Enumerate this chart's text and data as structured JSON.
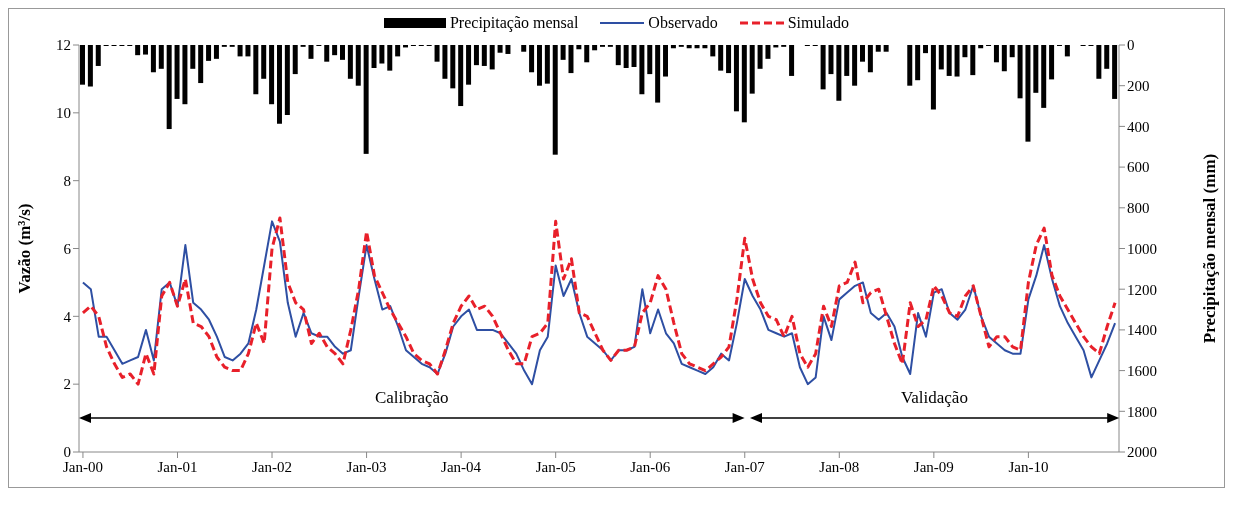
{
  "chart_data": {
    "type": "line",
    "ylabel": "Vazão (m³/s)",
    "y2label": "Precipitação mensal (mm)",
    "categories": [
      "Jan-00",
      null,
      null,
      null,
      null,
      null,
      null,
      null,
      null,
      null,
      null,
      null,
      "Jan-01",
      null,
      null,
      null,
      null,
      null,
      null,
      null,
      null,
      null,
      null,
      null,
      "Jan-02",
      null,
      null,
      null,
      null,
      null,
      null,
      null,
      null,
      null,
      null,
      null,
      "Jan-03",
      null,
      null,
      null,
      null,
      null,
      null,
      null,
      null,
      null,
      null,
      null,
      "Jan-04",
      null,
      null,
      null,
      null,
      null,
      null,
      null,
      null,
      null,
      null,
      null,
      "Jan-05",
      null,
      null,
      null,
      null,
      null,
      null,
      null,
      null,
      null,
      null,
      null,
      "Jan-06",
      null,
      null,
      null,
      null,
      null,
      null,
      null,
      null,
      null,
      null,
      null,
      "Jan-07",
      null,
      null,
      null,
      null,
      null,
      null,
      null,
      null,
      null,
      null,
      null,
      "Jan-08",
      null,
      null,
      null,
      null,
      null,
      null,
      null,
      null,
      null,
      null,
      null,
      "Jan-09",
      null,
      null,
      null,
      null,
      null,
      null,
      null,
      null,
      null,
      null,
      null,
      "Jan-10",
      null,
      null,
      null,
      null,
      null,
      null,
      null,
      null,
      null,
      null,
      null
    ],
    "series": [
      {
        "name": "Precipitação mensal",
        "type": "bar",
        "axis": "y2",
        "color": "#000000",
        "values": [
          195,
          204,
          103,
          5,
          5,
          5,
          5,
          50,
          47,
          134,
          117,
          413,
          265,
          291,
          117,
          187,
          78,
          68,
          9,
          9,
          56,
          56,
          242,
          166,
          291,
          387,
          344,
          143,
          9,
          68,
          5,
          82,
          50,
          73,
          166,
          200,
          535,
          113,
          91,
          126,
          56,
          12,
          5,
          5,
          5,
          82,
          166,
          213,
          300,
          195,
          99,
          103,
          120,
          38,
          44,
          0,
          33,
          134,
          200,
          190,
          539,
          73,
          138,
          21,
          85,
          26,
          9,
          9,
          99,
          113,
          108,
          242,
          143,
          283,
          155,
          16,
          9,
          16,
          16,
          16,
          56,
          126,
          138,
          326,
          380,
          239,
          117,
          68,
          12,
          9,
          152,
          0,
          5,
          5,
          218,
          143,
          274,
          152,
          200,
          82,
          134,
          33,
          33,
          0,
          0,
          200,
          173,
          40,
          317,
          120,
          152,
          155,
          60,
          148,
          16,
          5,
          85,
          129,
          60,
          262,
          475,
          235,
          309,
          169,
          5,
          56,
          0,
          5,
          5,
          166,
          117,
          265
        ]
      },
      {
        "name": "Observado",
        "line_style": "solid",
        "color": "#2e4fa3",
        "values": [
          5.0,
          4.8,
          3.4,
          3.4,
          3.0,
          2.6,
          2.7,
          2.8,
          3.6,
          2.7,
          4.8,
          5.0,
          4.3,
          6.1,
          4.4,
          4.2,
          3.9,
          3.4,
          2.8,
          2.7,
          2.9,
          3.2,
          4.2,
          5.5,
          6.8,
          6.2,
          4.4,
          3.4,
          4.1,
          3.5,
          3.4,
          3.4,
          3.1,
          2.9,
          3.0,
          4.6,
          6.1,
          5.1,
          4.2,
          4.3,
          3.7,
          3.0,
          2.8,
          2.6,
          2.5,
          2.3,
          2.9,
          3.7,
          4.0,
          4.2,
          3.6,
          3.6,
          3.6,
          3.5,
          3.2,
          2.9,
          2.4,
          2.0,
          3.0,
          3.4,
          5.5,
          4.6,
          5.1,
          4.1,
          3.4,
          3.2,
          3.0,
          2.7,
          3.0,
          3.0,
          3.1,
          4.8,
          3.5,
          4.2,
          3.5,
          3.2,
          2.6,
          2.5,
          2.4,
          2.3,
          2.5,
          2.9,
          2.7,
          3.8,
          5.1,
          4.6,
          4.2,
          3.6,
          3.5,
          3.4,
          3.5,
          2.5,
          2.0,
          2.2,
          4.0,
          3.3,
          4.5,
          4.7,
          4.9,
          5.0,
          4.1,
          3.9,
          4.1,
          3.7,
          2.8,
          2.3,
          4.1,
          3.4,
          4.7,
          4.8,
          4.1,
          3.9,
          4.2,
          4.9,
          4.0,
          3.4,
          3.2,
          3.0,
          2.9,
          2.9,
          4.5,
          5.2,
          6.1,
          5.1,
          4.3,
          3.8,
          3.4,
          3.0,
          2.2,
          2.7,
          3.2,
          3.8
        ]
      },
      {
        "name": "Simulado",
        "line_style": "dashed",
        "color": "#e8202a",
        "values": [
          4.1,
          4.3,
          4.0,
          3.1,
          2.6,
          2.2,
          2.3,
          2.0,
          2.9,
          2.3,
          4.6,
          5.0,
          4.3,
          5.1,
          3.8,
          3.7,
          3.4,
          2.8,
          2.5,
          2.4,
          2.4,
          2.9,
          3.8,
          3.2,
          6.0,
          6.9,
          5.0,
          4.4,
          4.2,
          3.2,
          3.5,
          3.1,
          2.9,
          2.6,
          3.6,
          4.8,
          6.5,
          5.2,
          4.7,
          4.2,
          3.8,
          3.4,
          2.9,
          2.7,
          2.6,
          2.3,
          3.0,
          3.8,
          4.3,
          4.6,
          4.2,
          4.3,
          4.0,
          3.5,
          3.0,
          2.6,
          2.6,
          3.4,
          3.5,
          3.8,
          6.8,
          5.1,
          5.7,
          4.1,
          4.0,
          3.5,
          3.0,
          2.7,
          3.0,
          3.0,
          3.1,
          4.1,
          4.4,
          5.2,
          4.8,
          3.8,
          2.9,
          2.6,
          2.5,
          2.4,
          2.6,
          2.8,
          3.1,
          4.5,
          6.3,
          5.1,
          4.4,
          4.0,
          3.9,
          3.4,
          4.0,
          2.9,
          2.5,
          2.9,
          4.3,
          3.7,
          4.9,
          5.0,
          5.6,
          4.4,
          4.7,
          4.8,
          4.0,
          3.2,
          2.6,
          4.4,
          3.7,
          3.9,
          4.9,
          4.6,
          4.1,
          4.0,
          4.6,
          4.9,
          4.0,
          3.1,
          3.4,
          3.4,
          3.1,
          3.0,
          5.0,
          6.1,
          6.6,
          5.2,
          4.6,
          4.2,
          3.8,
          3.4,
          3.1,
          2.9,
          3.7,
          4.4
        ]
      }
    ],
    "ylim": [
      0,
      12
    ],
    "yticks": [
      0,
      2,
      4,
      6,
      8,
      10,
      12
    ],
    "y2lim": [
      2000,
      0
    ],
    "y2ticks": [
      0,
      200,
      400,
      600,
      800,
      1000,
      1200,
      1400,
      1600,
      1800,
      2000
    ],
    "annotations": [
      "Calibração",
      "Validação"
    ],
    "legend": "top",
    "grid": false,
    "marker": "none"
  }
}
